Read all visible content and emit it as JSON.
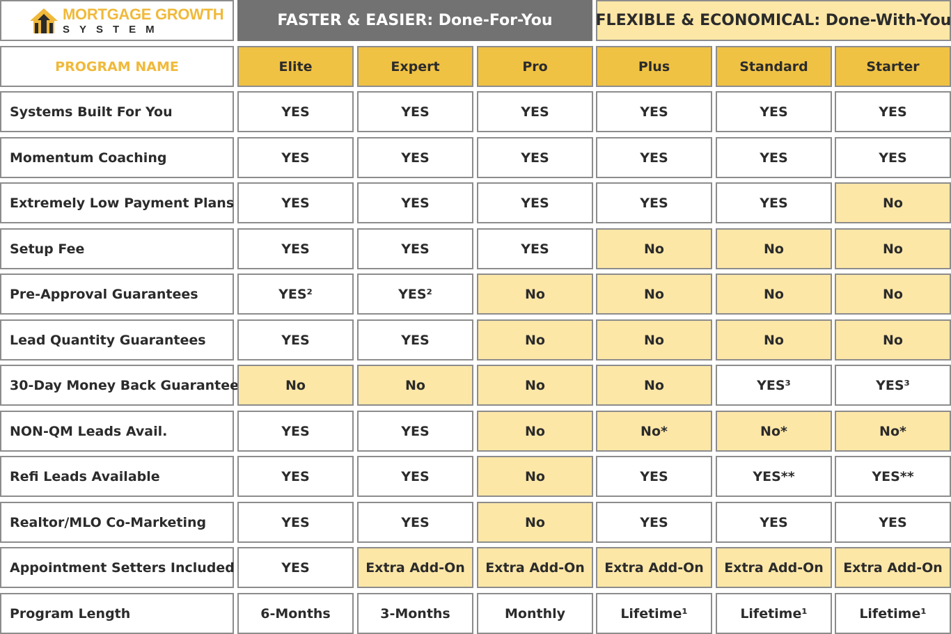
{
  "logo": {
    "line1": "MORTGAGE GROWTH",
    "line2": "SYSTEM"
  },
  "groups": {
    "done_for_you": "FASTER & EASIER:  Done-For-You",
    "done_with_you": "FLEXIBLE & ECONOMICAL: Done-With-You"
  },
  "program_name_label": "PROGRAM NAME",
  "programs": [
    "Elite",
    "Expert",
    "Pro",
    "Plus",
    "Standard",
    "Starter"
  ],
  "colors": {
    "gold": "#f0c243",
    "light_yellow": "#fde7a7",
    "grey_header": "#727272",
    "orange_text": "#f0b93a"
  },
  "rows": [
    {
      "label": "Systems Built For You",
      "values": [
        {
          "text": "YES",
          "included": true
        },
        {
          "text": "YES",
          "included": true
        },
        {
          "text": "YES",
          "included": true
        },
        {
          "text": "YES",
          "included": true
        },
        {
          "text": "YES",
          "included": true
        },
        {
          "text": "YES",
          "included": true
        }
      ]
    },
    {
      "label": "Momentum Coaching",
      "values": [
        {
          "text": "YES",
          "included": true
        },
        {
          "text": "YES",
          "included": true
        },
        {
          "text": "YES",
          "included": true
        },
        {
          "text": "YES",
          "included": true
        },
        {
          "text": "YES",
          "included": true
        },
        {
          "text": "YES",
          "included": true
        }
      ]
    },
    {
      "label": "Extremely Low Payment Plans",
      "values": [
        {
          "text": "YES",
          "included": true
        },
        {
          "text": "YES",
          "included": true
        },
        {
          "text": "YES",
          "included": true
        },
        {
          "text": "YES",
          "included": true
        },
        {
          "text": "YES",
          "included": true
        },
        {
          "text": "No",
          "included": false
        }
      ]
    },
    {
      "label": "Setup Fee",
      "values": [
        {
          "text": "YES",
          "included": true
        },
        {
          "text": "YES",
          "included": true
        },
        {
          "text": "YES",
          "included": true
        },
        {
          "text": "No",
          "included": false
        },
        {
          "text": "No",
          "included": false
        },
        {
          "text": "No",
          "included": false
        }
      ]
    },
    {
      "label": "Pre-Approval Guarantees",
      "values": [
        {
          "text": "YES²",
          "included": true
        },
        {
          "text": "YES²",
          "included": true
        },
        {
          "text": "No",
          "included": false
        },
        {
          "text": "No",
          "included": false
        },
        {
          "text": "No",
          "included": false
        },
        {
          "text": "No",
          "included": false
        }
      ]
    },
    {
      "label": "Lead Quantity Guarantees",
      "values": [
        {
          "text": "YES",
          "included": true
        },
        {
          "text": "YES",
          "included": true
        },
        {
          "text": "No",
          "included": false
        },
        {
          "text": "No",
          "included": false
        },
        {
          "text": "No",
          "included": false
        },
        {
          "text": "No",
          "included": false
        }
      ]
    },
    {
      "label": "30-Day Money Back Guarantee",
      "values": [
        {
          "text": "No",
          "included": false
        },
        {
          "text": "No",
          "included": false
        },
        {
          "text": "No",
          "included": false
        },
        {
          "text": "No",
          "included": false
        },
        {
          "text": "YES³",
          "included": true
        },
        {
          "text": "YES³",
          "included": true
        }
      ]
    },
    {
      "label": "NON-QM Leads Avail.",
      "values": [
        {
          "text": "YES",
          "included": true
        },
        {
          "text": "YES",
          "included": true
        },
        {
          "text": "No",
          "included": false
        },
        {
          "text": "No*",
          "included": false
        },
        {
          "text": "No*",
          "included": false
        },
        {
          "text": "No*",
          "included": false
        }
      ]
    },
    {
      "label": "Refi Leads Available",
      "values": [
        {
          "text": "YES",
          "included": true
        },
        {
          "text": "YES",
          "included": true
        },
        {
          "text": "No",
          "included": false
        },
        {
          "text": "YES",
          "included": true
        },
        {
          "text": "YES**",
          "included": true
        },
        {
          "text": "YES**",
          "included": true
        }
      ]
    },
    {
      "label": "Realtor/MLO Co-Marketing",
      "values": [
        {
          "text": "YES",
          "included": true
        },
        {
          "text": "YES",
          "included": true
        },
        {
          "text": "No",
          "included": false
        },
        {
          "text": "YES",
          "included": true
        },
        {
          "text": "YES",
          "included": true
        },
        {
          "text": "YES",
          "included": true
        }
      ]
    },
    {
      "label": "Appointment Setters Included",
      "values": [
        {
          "text": "YES",
          "included": true
        },
        {
          "text": "Extra Add-On",
          "included": false
        },
        {
          "text": "Extra Add-On",
          "included": false
        },
        {
          "text": "Extra Add-On",
          "included": false
        },
        {
          "text": "Extra Add-On",
          "included": false
        },
        {
          "text": "Extra Add-On",
          "included": false
        }
      ]
    },
    {
      "label": "Program Length",
      "values": [
        {
          "text": "6-Months",
          "included": true
        },
        {
          "text": "3-Months",
          "included": true
        },
        {
          "text": "Monthly",
          "included": true
        },
        {
          "text": "Lifetime¹",
          "included": true
        },
        {
          "text": "Lifetime¹",
          "included": true
        },
        {
          "text": "Lifetime¹",
          "included": true
        }
      ]
    }
  ]
}
